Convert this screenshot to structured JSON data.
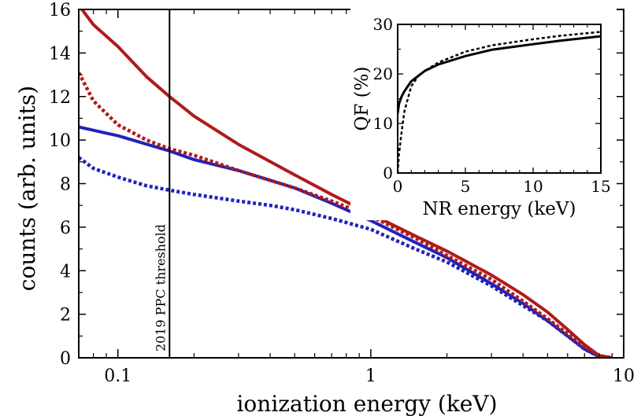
{
  "chart_data": [
    {
      "type": "line",
      "title": "",
      "xlabel": "ionization energy (keV)",
      "ylabel": "counts (arb. units)",
      "xscale": "log",
      "xlim": [
        0.07,
        10
      ],
      "ylim": [
        0,
        16
      ],
      "xticks": [
        {
          "value": 0.1,
          "label": "0.1"
        },
        {
          "value": 1,
          "label": "1"
        },
        {
          "value": 10,
          "label": "10"
        }
      ],
      "yticks": [
        {
          "value": 0,
          "label": "0"
        },
        {
          "value": 2,
          "label": "2"
        },
        {
          "value": 4,
          "label": "4"
        },
        {
          "value": 6,
          "label": "6"
        },
        {
          "value": 8,
          "label": "8"
        },
        {
          "value": 10,
          "label": "10"
        },
        {
          "value": 12,
          "label": "12"
        },
        {
          "value": 14,
          "label": "14"
        },
        {
          "value": 16,
          "label": "16"
        }
      ],
      "annotations": [
        {
          "type": "vline",
          "x": 0.16,
          "label": "2019 PPC threshold"
        }
      ],
      "series": [
        {
          "name": "red-solid",
          "color": "#b01a1a",
          "style": "solid",
          "x": [
            0.07,
            0.08,
            0.1,
            0.13,
            0.16,
            0.2,
            0.3,
            0.5,
            0.7,
            1.0,
            1.5,
            2.0,
            3.0,
            4.0,
            5.0,
            6.0,
            7.0,
            8.0,
            9.0
          ],
          "y": [
            16.2,
            15.3,
            14.3,
            12.9,
            12.0,
            11.1,
            9.8,
            8.4,
            7.5,
            6.6,
            5.6,
            4.9,
            3.8,
            2.9,
            2.1,
            1.3,
            0.6,
            0.1,
            0.0
          ]
        },
        {
          "name": "red-dotted",
          "color": "#b01a1a",
          "style": "dotted",
          "x": [
            0.07,
            0.08,
            0.1,
            0.13,
            0.16,
            0.2,
            0.3,
            0.5,
            0.7,
            1.0,
            1.5,
            2.0,
            3.0,
            4.0,
            5.0,
            6.0,
            7.0,
            8.0,
            9.0
          ],
          "y": [
            13.1,
            11.8,
            10.7,
            10.0,
            9.6,
            9.3,
            8.6,
            7.8,
            7.2,
            6.5,
            5.5,
            4.7,
            3.6,
            2.6,
            1.8,
            1.1,
            0.5,
            0.1,
            0.0
          ]
        },
        {
          "name": "blue-solid",
          "color": "#2222bb",
          "style": "solid",
          "x": [
            0.07,
            0.1,
            0.16,
            0.2,
            0.3,
            0.5,
            0.7,
            1.0,
            1.5,
            2.0,
            3.0,
            4.0,
            5.0,
            6.0,
            7.0,
            8.0,
            9.0
          ],
          "y": [
            10.6,
            10.2,
            9.5,
            9.1,
            8.6,
            7.8,
            7.1,
            6.3,
            5.3,
            4.6,
            3.4,
            2.5,
            1.7,
            1.0,
            0.4,
            0.05,
            0.0
          ]
        },
        {
          "name": "blue-dotted",
          "color": "#2222bb",
          "style": "dotted",
          "x": [
            0.07,
            0.08,
            0.1,
            0.13,
            0.16,
            0.2,
            0.3,
            0.4,
            0.5,
            0.7,
            1.0,
            1.5,
            2.0,
            3.0,
            4.0,
            5.0,
            6.0,
            7.0,
            8.0,
            9.0
          ],
          "y": [
            9.2,
            8.7,
            8.3,
            7.9,
            7.7,
            7.5,
            7.2,
            7.0,
            6.8,
            6.4,
            5.9,
            5.0,
            4.4,
            3.3,
            2.4,
            1.7,
            1.0,
            0.4,
            0.05,
            0.0
          ]
        }
      ]
    },
    {
      "type": "line",
      "title": "",
      "xlabel": "NR energy (keV)",
      "ylabel": "QF (%)",
      "xlim": [
        0,
        15
      ],
      "ylim": [
        0,
        30
      ],
      "xticks": [
        {
          "value": 0,
          "label": "0"
        },
        {
          "value": 5,
          "label": "5"
        },
        {
          "value": 10,
          "label": "10"
        },
        {
          "value": 15,
          "label": "15"
        }
      ],
      "yticks": [
        {
          "value": 0,
          "label": "0"
        },
        {
          "value": 10,
          "label": "10"
        },
        {
          "value": 20,
          "label": "20"
        },
        {
          "value": 30,
          "label": "30"
        }
      ],
      "series": [
        {
          "name": "QF-solid",
          "color": "#000000",
          "style": "solid",
          "x": [
            0.0,
            0.1,
            0.3,
            0.5,
            1.0,
            2.0,
            3.0,
            5.0,
            7.0,
            10.0,
            12.0,
            15.0
          ],
          "y": [
            12.0,
            14.0,
            15.5,
            16.5,
            18.5,
            20.6,
            21.9,
            23.6,
            24.9,
            26.0,
            26.7,
            27.6
          ]
        },
        {
          "name": "QF-dotted",
          "color": "#000000",
          "style": "dotted",
          "x": [
            0.0,
            0.1,
            0.3,
            0.5,
            1.0,
            1.5,
            2.0,
            3.0,
            5.0,
            7.0,
            10.0,
            12.0,
            15.0
          ],
          "y": [
            0.0,
            4.0,
            8.5,
            12.5,
            17.5,
            19.5,
            20.6,
            22.3,
            24.5,
            25.8,
            27.0,
            27.7,
            28.5
          ]
        }
      ]
    }
  ]
}
